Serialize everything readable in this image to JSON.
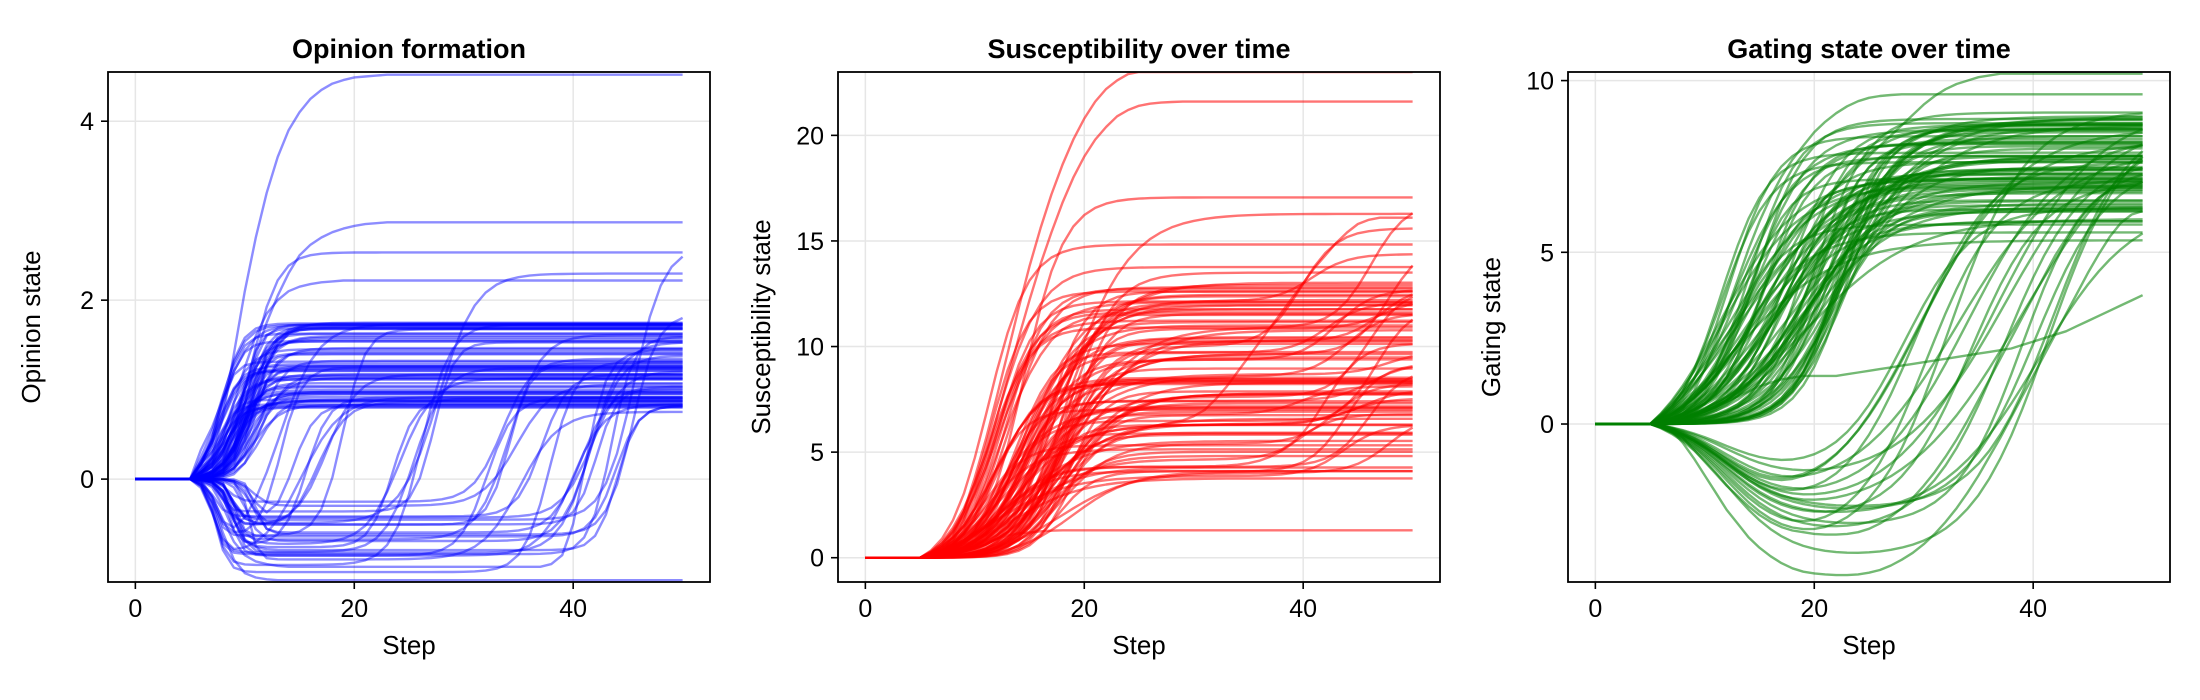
{
  "chart_data": [
    {
      "type": "line",
      "title": "Opinion formation",
      "xlabel": "Step",
      "ylabel": "Opinion state",
      "xlim": [
        -2.5,
        52.5
      ],
      "ylim": [
        -1.15,
        4.55
      ],
      "xticks": [
        0,
        20,
        40
      ],
      "yticks": [
        0,
        2,
        4
      ],
      "grid": true,
      "color": "#0000ff",
      "line_opacity": 0.45,
      "series_count": 100,
      "x": [
        0,
        1,
        2,
        3,
        4,
        5,
        6,
        7,
        8,
        9,
        10,
        11,
        12,
        13,
        14,
        15,
        16,
        17,
        18,
        19,
        20,
        21,
        22,
        23,
        24,
        25,
        26,
        27,
        28,
        29,
        30,
        31,
        32,
        33,
        34,
        35,
        36,
        37,
        38,
        39,
        40,
        41,
        42,
        43,
        44,
        45,
        46,
        47,
        48,
        49,
        50
      ],
      "series": [
        {
          "values": [
            0,
            0,
            0,
            0,
            0,
            0,
            0.05,
            0.25,
            0.7,
            1.4,
            2.1,
            2.7,
            3.2,
            3.6,
            3.9,
            4.1,
            4.25,
            4.35,
            4.42,
            4.46,
            4.49,
            4.5,
            4.51,
            4.52,
            4.52,
            4.52,
            4.52,
            4.52,
            4.52,
            4.52,
            4.52,
            4.52,
            4.52,
            4.52,
            4.52,
            4.52,
            4.52,
            4.52,
            4.52,
            4.52,
            4.52,
            4.52,
            4.52,
            4.52,
            4.52,
            4.52,
            4.52,
            4.52,
            4.52,
            4.52,
            4.52
          ]
        },
        {
          "values": [
            0,
            0,
            0,
            0,
            0,
            0,
            0.02,
            0.1,
            0.3,
            0.6,
            1.0,
            1.4,
            1.75,
            2.05,
            2.3,
            2.5,
            2.62,
            2.7,
            2.76,
            2.8,
            2.83,
            2.85,
            2.86,
            2.87,
            2.87,
            2.87,
            2.87,
            2.87,
            2.87,
            2.87,
            2.87,
            2.87,
            2.87,
            2.87,
            2.87,
            2.87,
            2.87,
            2.87,
            2.87,
            2.87,
            2.87,
            2.87,
            2.87,
            2.87,
            2.87,
            2.87,
            2.87,
            2.87,
            2.87,
            2.87,
            2.87
          ]
        },
        {
          "values": [
            0,
            0,
            0,
            0,
            0,
            0,
            0.03,
            0.15,
            0.45,
            0.85,
            1.25,
            1.6,
            1.85,
            2.0,
            2.1,
            2.15,
            2.18,
            2.2,
            2.21,
            2.22,
            2.22,
            2.22,
            2.22,
            2.22,
            2.22,
            2.22,
            2.22,
            2.22,
            2.22,
            2.22,
            2.22,
            2.22,
            2.22,
            2.22,
            2.22,
            2.22,
            2.22,
            2.22,
            2.22,
            2.22,
            2.22,
            2.22,
            2.22,
            2.22,
            2.22,
            2.22,
            2.22,
            2.22,
            2.22,
            2.22,
            2.22
          ]
        },
        {
          "values": [
            0,
            0,
            0,
            0,
            0,
            0,
            -0.05,
            -0.2,
            -0.45,
            -0.7,
            -0.85,
            -0.92,
            -0.95,
            -0.97,
            -0.98,
            -0.98,
            -0.98,
            -0.98,
            -0.98,
            -0.98,
            -0.98,
            -0.98,
            -0.98,
            -0.98,
            -0.98,
            -0.98,
            -0.98,
            -0.98,
            -0.98,
            -0.98,
            -0.98,
            -0.98,
            -0.98,
            -0.98,
            -0.98,
            -0.98,
            -0.98,
            -0.98,
            -0.95,
            -0.85,
            -0.5,
            0.1,
            0.7,
            1.1,
            1.3,
            1.38,
            1.42,
            1.44,
            1.45,
            1.45,
            1.45
          ]
        },
        {
          "values": [
            0,
            0,
            0,
            0,
            0,
            0,
            -0.05,
            -0.25,
            -0.6,
            -0.9,
            -1.05,
            -1.1,
            -1.12,
            -1.13,
            -1.13,
            -1.13,
            -1.13,
            -1.13,
            -1.13,
            -1.13,
            -1.13,
            -1.13,
            -1.13,
            -1.13,
            -1.13,
            -1.13,
            -1.13,
            -1.13,
            -1.13,
            -1.13,
            -1.13,
            -1.13,
            -1.13,
            -1.13,
            -1.13,
            -1.13,
            -1.13,
            -1.13,
            -1.13,
            -1.13,
            -1.13,
            -1.13,
            -1.13,
            -1.13,
            -1.13,
            -1.13,
            -1.13,
            -1.13,
            -1.13,
            -1.13,
            -1.13
          ]
        }
      ]
    },
    {
      "type": "line",
      "title": "Susceptibility over time",
      "xlabel": "Step",
      "ylabel": "Susceptibility state",
      "xlim": [
        -2.5,
        52.5
      ],
      "ylim": [
        -1.15,
        23.0
      ],
      "xticks": [
        0,
        20,
        40
      ],
      "yticks": [
        0,
        5,
        10,
        15,
        20
      ],
      "grid": true,
      "color": "#ff0000",
      "line_opacity": 0.55,
      "series_count": 100,
      "x": [
        0,
        1,
        2,
        3,
        4,
        5,
        6,
        7,
        8,
        9,
        10,
        11,
        12,
        13,
        14,
        15,
        16,
        17,
        18,
        19,
        20,
        21,
        22,
        23,
        24,
        25,
        26,
        27,
        28,
        29,
        30,
        31,
        32,
        33,
        34,
        35,
        36,
        37,
        38,
        39,
        40,
        41,
        42,
        43,
        44,
        45,
        46,
        47,
        48,
        49,
        50
      ],
      "series": [
        {
          "values": [
            0,
            0,
            0,
            0,
            0,
            0,
            0.05,
            0.3,
            1.0,
            2.2,
            3.8,
            5.6,
            7.6,
            9.7,
            11.8,
            13.8,
            15.6,
            17.2,
            18.6,
            19.8,
            20.8,
            21.6,
            22.2,
            22.6,
            22.9,
            23.0,
            23.0,
            23.0,
            23.0,
            23.0,
            23.0,
            23.0,
            23.0,
            23.0,
            23.0,
            23.0,
            23.0,
            23.0,
            23.0,
            23.0,
            23.0,
            23.0,
            23.0,
            23.0,
            23.0,
            23.0,
            23.0,
            23.0,
            23.0,
            23.0,
            23.0
          ]
        },
        {
          "values": [
            0,
            0,
            0,
            0,
            0,
            0,
            0.04,
            0.25,
            0.8,
            1.8,
            3.2,
            4.8,
            6.6,
            8.5,
            10.4,
            12.2,
            13.9,
            15.4,
            16.8,
            18.0,
            19.0,
            19.8,
            20.4,
            20.9,
            21.2,
            21.4,
            21.5,
            21.55,
            21.58,
            21.6,
            21.6,
            21.6,
            21.6,
            21.6,
            21.6,
            21.6,
            21.6,
            21.6,
            21.6,
            21.6,
            21.6,
            21.6,
            21.6,
            21.6,
            21.6,
            21.6,
            21.6,
            21.6,
            21.6,
            21.6,
            21.6
          ]
        },
        {
          "values": [
            0,
            0,
            0,
            0,
            0,
            0,
            0.03,
            0.2,
            0.6,
            1.3,
            2.3,
            3.5,
            4.9,
            6.3,
            7.6,
            8.7,
            9.6,
            10.3,
            10.8,
            11.1,
            11.3,
            11.4,
            11.45,
            11.5,
            11.5,
            11.5,
            11.5,
            11.5,
            11.5,
            11.5,
            11.5,
            11.5,
            11.5,
            11.5,
            11.5,
            11.5,
            11.5,
            11.5,
            11.5,
            11.5,
            11.5,
            11.5,
            11.5,
            11.5,
            11.5,
            11.5,
            11.5,
            11.5,
            11.5,
            11.5,
            11.5
          ]
        },
        {
          "values": [
            0,
            0,
            0,
            0,
            0,
            0,
            0.02,
            0.1,
            0.3,
            0.6,
            1.0,
            1.4,
            1.8,
            2.2,
            2.6,
            3.0,
            3.4,
            3.8,
            4.2,
            4.6,
            5.0,
            5.3,
            5.6,
            5.8,
            6.0,
            6.1,
            6.2,
            6.3,
            6.4,
            6.5,
            6.7,
            7.0,
            7.5,
            8.1,
            8.8,
            9.5,
            10.2,
            10.9,
            11.6,
            12.3,
            13.0,
            13.7,
            14.3,
            14.9,
            15.4,
            15.8,
            16.0,
            16.1,
            16.1,
            16.1,
            16.1
          ]
        },
        {
          "values": [
            0,
            0,
            0,
            0,
            0,
            0,
            0.01,
            0.05,
            0.15,
            0.3,
            0.5,
            0.7,
            0.9,
            1.05,
            1.15,
            1.2,
            1.25,
            1.28,
            1.3,
            1.3,
            1.3,
            1.3,
            1.3,
            1.3,
            1.3,
            1.3,
            1.3,
            1.3,
            1.3,
            1.3,
            1.3,
            1.3,
            1.3,
            1.3,
            1.3,
            1.3,
            1.3,
            1.3,
            1.3,
            1.3,
            1.3,
            1.3,
            1.3,
            1.3,
            1.3,
            1.3,
            1.3,
            1.3,
            1.3,
            1.3,
            1.3
          ]
        }
      ]
    },
    {
      "type": "line",
      "title": "Gating state over time",
      "xlabel": "Step",
      "ylabel": "Gating state",
      "xlim": [
        -2.5,
        52.5
      ],
      "ylim": [
        -4.6,
        10.25
      ],
      "xticks": [
        0,
        20,
        40
      ],
      "yticks": [
        0,
        5,
        10
      ],
      "grid": true,
      "color": "#008000",
      "line_opacity": 0.55,
      "series_count": 100,
      "x": [
        0,
        1,
        2,
        3,
        4,
        5,
        6,
        7,
        8,
        9,
        10,
        11,
        12,
        13,
        14,
        15,
        16,
        17,
        18,
        19,
        20,
        21,
        22,
        23,
        24,
        25,
        26,
        27,
        28,
        29,
        30,
        31,
        32,
        33,
        34,
        35,
        36,
        37,
        38,
        39,
        40,
        41,
        42,
        43,
        44,
        45,
        46,
        47,
        48,
        49,
        50
      ],
      "series": [
        {
          "values": [
            0,
            0,
            0,
            0,
            0,
            0,
            0.03,
            0.15,
            0.45,
            0.95,
            1.6,
            2.4,
            3.3,
            4.2,
            5.1,
            5.9,
            6.6,
            7.2,
            7.7,
            8.1,
            8.5,
            8.8,
            9.05,
            9.25,
            9.4,
            9.5,
            9.55,
            9.58,
            9.6,
            9.6,
            9.6,
            9.6,
            9.6,
            9.6,
            9.6,
            9.6,
            9.6,
            9.6,
            9.6,
            9.6,
            9.6,
            9.6,
            9.6,
            9.6,
            9.6,
            9.6,
            9.6,
            9.6,
            9.6,
            9.6,
            9.6
          ]
        },
        {
          "values": [
            0,
            0,
            0,
            0,
            0,
            0,
            0.02,
            0.1,
            0.3,
            0.6,
            1.0,
            1.5,
            2.1,
            2.7,
            3.3,
            3.9,
            4.4,
            4.9,
            5.4,
            5.8,
            6.2,
            6.6,
            6.9,
            7.2,
            7.5,
            7.8,
            8.1,
            8.4,
            8.7,
            9.0,
            9.3,
            9.55,
            9.75,
            9.9,
            10.0,
            10.1,
            10.15,
            10.2,
            10.2,
            10.2,
            10.2,
            10.2,
            10.2,
            10.2,
            10.2,
            10.2,
            10.2,
            10.2,
            10.2,
            10.2,
            10.2
          ]
        },
        {
          "values": [
            0,
            0,
            0,
            0,
            0,
            0,
            -0.03,
            -0.15,
            -0.4,
            -0.75,
            -1.1,
            -1.45,
            -1.8,
            -2.1,
            -2.4,
            -2.65,
            -2.85,
            -3.0,
            -3.1,
            -3.15,
            -3.2,
            -3.22,
            -3.22,
            -3.2,
            -3.15,
            -3.05,
            -2.9,
            -2.7,
            -2.45,
            -2.15,
            -1.8,
            -1.4,
            -0.95,
            -0.45,
            0.1,
            0.7,
            1.3,
            1.9,
            2.5,
            3.1,
            3.7,
            4.3,
            4.9,
            5.4,
            5.9,
            6.3,
            6.6,
            6.8,
            6.95,
            7.0,
            7.05
          ]
        },
        {
          "values": [
            0,
            0,
            0,
            0,
            0,
            0,
            -0.04,
            -0.2,
            -0.55,
            -1.0,
            -1.5,
            -2.0,
            -2.5,
            -2.9,
            -3.3,
            -3.6,
            -3.85,
            -4.05,
            -4.2,
            -4.3,
            -4.35,
            -4.38,
            -4.4,
            -4.4,
            -4.38,
            -4.33,
            -4.25,
            -4.12,
            -3.95,
            -3.75,
            -3.5,
            -3.2,
            -2.85,
            -2.45,
            -2.0,
            -1.5,
            -0.95,
            -0.4,
            0.2,
            0.8,
            1.4,
            2.0,
            2.6,
            3.2,
            3.8,
            4.4,
            4.95,
            5.45,
            5.85,
            6.1,
            6.2
          ]
        },
        {
          "values": [
            0,
            0,
            0,
            0,
            0,
            0,
            0.01,
            0.05,
            0.12,
            0.22,
            0.35,
            0.5,
            0.65,
            0.8,
            0.95,
            1.1,
            1.2,
            1.3,
            1.35,
            1.4,
            1.4,
            1.4,
            1.4,
            1.45,
            1.5,
            1.55,
            1.6,
            1.65,
            1.7,
            1.75,
            1.8,
            1.85,
            1.9,
            1.95,
            2.0,
            2.05,
            2.1,
            2.15,
            2.2,
            2.3,
            2.4,
            2.5,
            2.6,
            2.7,
            2.85,
            3.0,
            3.15,
            3.3,
            3.45,
            3.6,
            3.75
          ]
        }
      ]
    }
  ]
}
